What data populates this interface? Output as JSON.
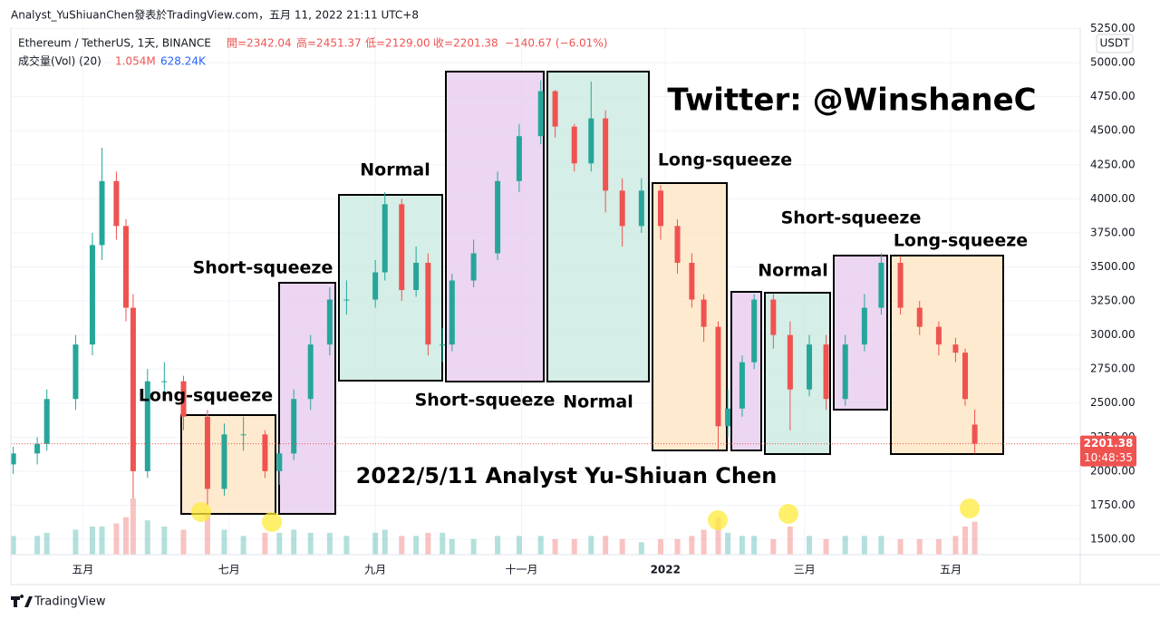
{
  "chart_data": {
    "type": "candlestick",
    "header": {
      "author_line": "Analyst_YuShiuanChen發表於TradingView.com，五月 11, 2022 21:11 UTC+8",
      "symbol": "Ethereum / TetherUS, 1天, BINANCE",
      "open": "開=2342.04",
      "high": "高=2451.37",
      "low": "低=2129.00",
      "close": "收=2201.38",
      "change": "−140.67 (−6.01%)",
      "volume_label": "成交量(Vol) (20)",
      "volume": "1.054M",
      "volume_ma": "628.24K"
    },
    "currency": "USDT",
    "price_tag": "2201.38",
    "countdown": "10:48:35",
    "brand": "TradingView",
    "watermark": "Twitter: @WinshaneC",
    "caption": "2022/5/11 Analyst Yu-Shiuan Chen",
    "annotations": [
      "Long-squeeze",
      "Short-squeeze",
      "Normal",
      "Short-squeeze",
      "Normal",
      "Long-squeeze",
      "Normal",
      "Short-squeeze",
      "Long-squeeze"
    ],
    "up_color": "#26a69a",
    "down_color": "#ef5350",
    "x": [
      0,
      10,
      14,
      26,
      33,
      37,
      43,
      47,
      50,
      56,
      63,
      71,
      81,
      88,
      96,
      105,
      111,
      117,
      124,
      132,
      139,
      151,
      155,
      162,
      168,
      173,
      179,
      183,
      192,
      202,
      211,
      220,
      226,
      234,
      241,
      247,
      254,
      262,
      270,
      277,
      283,
      288,
      294,
      298,
      304,
      309,
      317,
      324,
      332,
      339,
      347,
      355,
      362,
      370,
      378,
      386,
      393,
      397,
      401
    ],
    "open": [
      2050,
      2130,
      2200,
      2530,
      2930,
      3660,
      4130,
      3800,
      3200,
      2000,
      2660,
      2660,
      2400,
      1870,
      2270,
      2270,
      2000,
      2130,
      2530,
      2930,
      3260,
      3260,
      3460,
      3960,
      3330,
      3530,
      2930,
      2930,
      3400,
      3600,
      4130,
      4460,
      4790,
      4530,
      4260,
      4590,
      4060,
      3800,
      4060,
      3800,
      3530,
      3260,
      3060,
      2330,
      2460,
      2800,
      3260,
      3000,
      2600,
      2930,
      2530,
      2930,
      3200,
      3530,
      3200,
      3060,
      2930,
      2870,
      2342.04
    ],
    "high": [
      2180,
      2250,
      2600,
      3000,
      3750,
      4375,
      4200,
      3850,
      3300,
      2750,
      2800,
      2700,
      2450,
      2350,
      2400,
      2300,
      2200,
      2600,
      3000,
      3350,
      3400,
      3550,
      4050,
      4000,
      3650,
      3600,
      3050,
      3450,
      3700,
      4200,
      4550,
      4870,
      4800,
      4550,
      4860,
      4650,
      4150,
      4150,
      4100,
      3850,
      3600,
      3300,
      3100,
      2600,
      2850,
      3300,
      3300,
      3100,
      3000,
      3000,
      3000,
      3300,
      3600,
      3580,
      3250,
      3100,
      2980,
      2900,
      2451.37
    ],
    "low": [
      1980,
      2050,
      2150,
      2450,
      2850,
      3550,
      3700,
      3100,
      1800,
      1950,
      2550,
      2300,
      1750,
      1820,
      2150,
      1950,
      1900,
      2080,
      2450,
      2850,
      3150,
      3200,
      3400,
      3250,
      3280,
      2850,
      2800,
      2880,
      3350,
      3550,
      4050,
      4400,
      4450,
      4200,
      4200,
      3900,
      3650,
      3750,
      3700,
      3450,
      3200,
      2950,
      2160,
      2250,
      2400,
      2750,
      2900,
      2300,
      2550,
      2450,
      2480,
      2880,
      3150,
      3150,
      3000,
      2850,
      2800,
      2480,
      2129
    ],
    "close": [
      2130,
      2200,
      2530,
      2930,
      3660,
      4130,
      3800,
      3200,
      2000,
      2660,
      2660,
      2400,
      1870,
      2270,
      2270,
      2000,
      2130,
      2530,
      2930,
      3260,
      3260,
      3460,
      3960,
      3330,
      3530,
      2930,
      2930,
      3400,
      3600,
      4130,
      4460,
      4790,
      4530,
      4260,
      4590,
      4060,
      3800,
      4060,
      3800,
      3530,
      3260,
      3060,
      2330,
      2460,
      2800,
      3260,
      3000,
      2600,
      2930,
      2530,
      2930,
      3200,
      3530,
      3200,
      3060,
      2930,
      2870,
      2530,
      2201.38
    ],
    "volume": [
      0.6,
      0.6,
      0.7,
      0.8,
      0.9,
      0.9,
      1.0,
      1.2,
      1.8,
      1.1,
      0.9,
      0.8,
      1.3,
      0.8,
      0.6,
      0.7,
      0.7,
      0.8,
      0.7,
      0.7,
      0.6,
      0.7,
      0.8,
      0.6,
      0.6,
      0.7,
      0.7,
      0.5,
      0.5,
      0.6,
      0.6,
      0.6,
      0.5,
      0.5,
      0.6,
      0.6,
      0.5,
      0.4,
      0.5,
      0.5,
      0.6,
      0.8,
      1.2,
      0.7,
      0.6,
      0.6,
      0.5,
      0.9,
      0.6,
      0.5,
      0.6,
      0.6,
      0.6,
      0.5,
      0.5,
      0.5,
      0.6,
      0.9,
      1.054
    ],
    "xlim": [
      -1,
      445
    ],
    "xticks": [
      {
        "value": 29,
        "label": "五月"
      },
      {
        "value": 90,
        "label": "七月"
      },
      {
        "value": 151,
        "label": "九月"
      },
      {
        "value": 212,
        "label": "十一月"
      },
      {
        "value": 272,
        "label": "2022"
      },
      {
        "value": 330,
        "label": "三月"
      },
      {
        "value": 391,
        "label": "五月"
      }
    ],
    "ylim": [
      1387,
      5260
    ],
    "yticks": [
      {
        "value": 1500,
        "label": "1500.00"
      },
      {
        "value": 1750,
        "label": "1750.00"
      },
      {
        "value": 2000,
        "label": "2000.00"
      },
      {
        "value": 2250,
        "label": "2250.00"
      },
      {
        "value": 2500,
        "label": "2500.00"
      },
      {
        "value": 2750,
        "label": "2750.00"
      },
      {
        "value": 3000,
        "label": "3000.00"
      },
      {
        "value": 3250,
        "label": "3250.00"
      },
      {
        "value": 3500,
        "label": "3500.00"
      },
      {
        "value": 3750,
        "label": "3750.00"
      },
      {
        "value": 4000,
        "label": "4000.00"
      },
      {
        "value": 4250,
        "label": "4250.00"
      },
      {
        "value": 4500,
        "label": "4500.00"
      },
      {
        "value": 4750,
        "label": "4750.00"
      },
      {
        "value": 5000,
        "label": "5000.00"
      },
      {
        "value": 5250,
        "label": "5250.00"
      }
    ],
    "grid": true
  }
}
